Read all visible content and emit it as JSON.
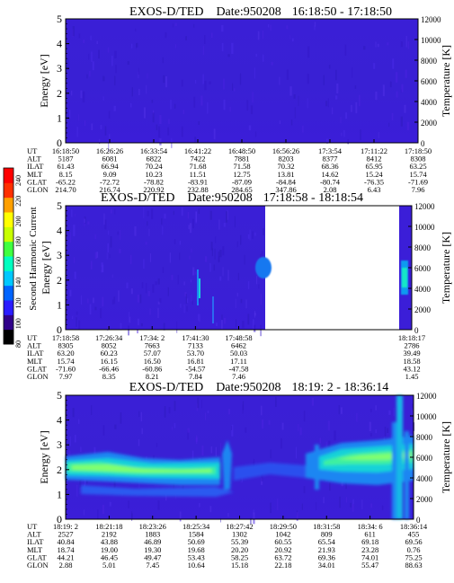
{
  "colorbar": {
    "label": "Second Harmonic Current",
    "ticks": [
      "240",
      "220",
      "200",
      "180",
      "160",
      "140",
      "120",
      "100",
      "80"
    ],
    "colors": [
      "#000000",
      "#30008a",
      "#2a1cff",
      "#0064ff",
      "#00c8ff",
      "#00ffc0",
      "#40ff40",
      "#c8ff00",
      "#ffff00",
      "#ffa000",
      "#ff3000",
      "#ff0000"
    ]
  },
  "chart_data": [
    {
      "type": "heatmap",
      "title": "EXOS-D/TED",
      "date_label": "Date:950208",
      "time_range": "16:18:50 - 17:18:50",
      "ylabel": "Energy [eV]",
      "ylabel_right": "Temperature [K]",
      "ylim": [
        0,
        5
      ],
      "yticks": [
        "0",
        "1",
        "2",
        "3",
        "4",
        "5"
      ],
      "ylim_right": [
        0,
        12000
      ],
      "yticks_right": [
        "0",
        "2000",
        "4000",
        "6000",
        "8000",
        "10000",
        "12000"
      ],
      "coverage": [
        0,
        1
      ],
      "ephemeris": {
        "UT": [
          "16:18:50",
          "16:26:26",
          "16:33:54",
          "16:41:22",
          "16:48:50",
          "16:56:26",
          "17:3:54",
          "17:11:22",
          "17:18:50"
        ],
        "ALT": [
          "5187",
          "6081",
          "6822",
          "7422",
          "7881",
          "8203",
          "8377",
          "8412",
          "8308"
        ],
        "ILAT": [
          "61.43",
          "66.94",
          "70.24",
          "71.68",
          "71.58",
          "70.32",
          "68.36",
          "65.95",
          "63.25"
        ],
        "MLT": [
          "8.15",
          "9.09",
          "10.23",
          "11.51",
          "12.75",
          "13.81",
          "14.62",
          "15.24",
          "15.74"
        ],
        "GLAT": [
          "-65.22",
          "-72.72",
          "-78.82",
          "-83.91",
          "-87.09",
          "-84.84",
          "-80.74",
          "-76.35",
          "-71.69"
        ],
        "GLON": [
          "214.70",
          "216.74",
          "220.92",
          "232.88",
          "284.65",
          "347.86",
          "2.08",
          "6.43",
          "7.96"
        ]
      }
    },
    {
      "type": "heatmap",
      "title": "EXOS-D/TED",
      "date_label": "Date:950208",
      "time_range": "17:18:58 - 18:18:54",
      "ylabel": "Energy [eV]",
      "ylabel_right": "Temperature [K]",
      "ylim": [
        0,
        5
      ],
      "yticks": [
        "0",
        "1",
        "2",
        "3",
        "4",
        "5"
      ],
      "ylim_right": [
        0,
        12000
      ],
      "yticks_right": [
        "0",
        "2000",
        "4000",
        "6000",
        "8000",
        "10000",
        "12000"
      ],
      "coverage": [
        0,
        0.57
      ],
      "ephemeris": {
        "UT": [
          "17:18:58",
          "17:26:34",
          "17:34: 2",
          "17:41:30",
          "17:48:58",
          "",
          "",
          "",
          "18:18:17"
        ],
        "ALT": [
          "8305",
          "8052",
          "7663",
          "7133",
          "6462",
          "",
          "",
          "",
          "2786"
        ],
        "ILAT": [
          "63.20",
          "60.23",
          "57.07",
          "53.70",
          "50.03",
          "",
          "",
          "",
          "39.49"
        ],
        "MLT": [
          "15.74",
          "16.15",
          "16.50",
          "16.81",
          "17.11",
          "",
          "",
          "",
          "18.58"
        ],
        "GLAT": [
          "-71.60",
          "-66.46",
          "-60.86",
          "-54.57",
          "-47.58",
          "",
          "",
          "",
          "43.12"
        ],
        "GLON": [
          "7.97",
          "8.35",
          "8.21",
          "7.84",
          "7.46",
          "",
          "",
          "",
          "1.45"
        ]
      }
    },
    {
      "type": "heatmap",
      "title": "EXOS-D/TED",
      "date_label": "Date:950208",
      "time_range": "18:19: 2 - 18:36:14",
      "ylabel": "Energy [eV]",
      "ylabel_right": "Temperature [K]",
      "ylim": [
        0,
        5
      ],
      "yticks": [
        "0",
        "1",
        "2",
        "3",
        "4",
        "5"
      ],
      "ylim_right": [
        0,
        12000
      ],
      "yticks_right": [
        "0",
        "2000",
        "4000",
        "6000",
        "8000",
        "10000",
        "12000"
      ],
      "coverage": [
        0,
        1
      ],
      "ephemeris": {
        "UT": [
          "18:19: 2",
          "18:21:18",
          "18:23:26",
          "18:25:34",
          "18:27:42",
          "18:29:50",
          "18:31:58",
          "18:34: 6",
          "18:36:14"
        ],
        "ALT": [
          "2527",
          "2192",
          "1883",
          "1584",
          "1302",
          "1042",
          "809",
          "611",
          "455"
        ],
        "ILAT": [
          "40.84",
          "43.88",
          "46.89",
          "50.69",
          "55.39",
          "60.55",
          "65.54",
          "69.18",
          "69.56"
        ],
        "MLT": [
          "18.74",
          "19.00",
          "19.30",
          "19.68",
          "20.20",
          "20.92",
          "21.93",
          "23.28",
          "0.76"
        ],
        "GLAT": [
          "44.21",
          "46.45",
          "49.47",
          "53.43",
          "58.25",
          "63.72",
          "69.36",
          "74.01",
          "75.25"
        ],
        "GLON": [
          "2.88",
          "5.01",
          "7.45",
          "10.64",
          "15.18",
          "22.18",
          "34.01",
          "55.47",
          "88.63"
        ]
      }
    }
  ]
}
